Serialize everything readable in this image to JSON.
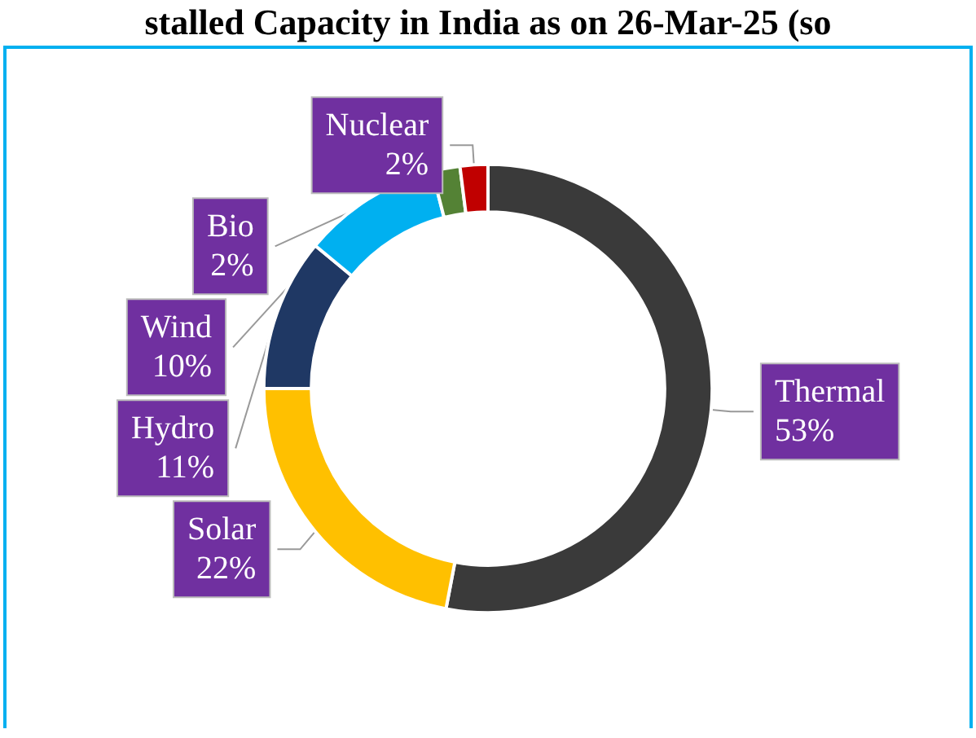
{
  "chart_data": {
    "type": "donut",
    "title": "stalled Capacity in India as on 26-Mar-25 (so",
    "categories": [
      "Thermal",
      "Solar",
      "Hydro",
      "Wind",
      "Bio",
      "Nuclear"
    ],
    "values": [
      53,
      22,
      11,
      10,
      2,
      2
    ],
    "colors": [
      "#3a3a3a",
      "#ffc000",
      "#1f3864",
      "#00b0f0",
      "#548235",
      "#c00000"
    ],
    "value_labels": [
      "53%",
      "22%",
      "11%",
      "10%",
      "2%",
      "2%"
    ],
    "legend": false
  }
}
